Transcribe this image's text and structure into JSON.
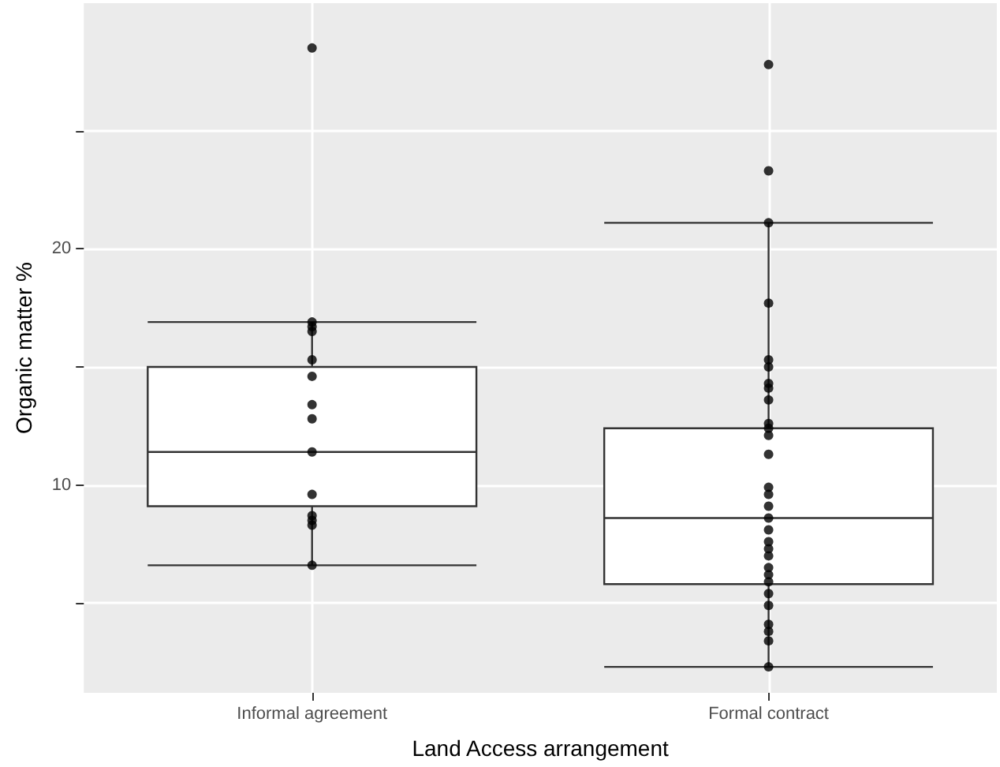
{
  "chart_data": {
    "type": "box",
    "xlabel": "Land Access arrangement",
    "ylabel": "Organic matter %",
    "categories": [
      "Informal agreement",
      "Formal contract"
    ],
    "boxes": [
      {
        "low": 6.6,
        "q1": 9.1,
        "median": 11.4,
        "q3": 15.0,
        "high": 16.9,
        "outliers": [
          28.5
        ]
      },
      {
        "low": 2.3,
        "q1": 5.8,
        "median": 8.6,
        "q3": 12.4,
        "high": 21.1,
        "outliers": [
          27.8,
          23.3
        ]
      }
    ],
    "series": [
      {
        "type": "scatter",
        "color": "#000000",
        "x": [
          "Informal agreement",
          "Informal agreement",
          "Informal agreement",
          "Informal agreement",
          "Informal agreement",
          "Informal agreement",
          "Informal agreement",
          "Informal agreement",
          "Informal agreement",
          "Informal agreement",
          "Informal agreement",
          "Informal agreement",
          "Informal agreement"
        ],
        "values": [
          16.9,
          16.7,
          16.5,
          15.3,
          14.6,
          13.4,
          12.8,
          11.4,
          9.6,
          8.7,
          8.5,
          8.3,
          6.6
        ]
      },
      {
        "type": "scatter",
        "color": "#000000",
        "x": [
          "Formal contract",
          "Formal contract",
          "Formal contract",
          "Formal contract",
          "Formal contract",
          "Formal contract",
          "Formal contract",
          "Formal contract",
          "Formal contract",
          "Formal contract",
          "Formal contract",
          "Formal contract",
          "Formal contract",
          "Formal contract",
          "Formal contract",
          "Formal contract",
          "Formal contract",
          "Formal contract",
          "Formal contract",
          "Formal contract",
          "Formal contract",
          "Formal contract",
          "Formal contract",
          "Formal contract",
          "Formal contract",
          "Formal contract",
          "Formal contract",
          "Formal contract"
        ],
        "values": [
          21.1,
          17.7,
          15.3,
          15.0,
          14.3,
          14.1,
          13.6,
          12.6,
          12.4,
          12.1,
          11.3,
          9.9,
          9.6,
          9.1,
          8.6,
          8.1,
          7.6,
          7.3,
          7.0,
          6.5,
          6.2,
          5.9,
          5.4,
          4.9,
          4.1,
          3.8,
          3.4,
          2.3
        ]
      }
    ],
    "ylim": [
      1.2,
      30.4
    ],
    "yticks": [
      {
        "value": 5,
        "label": null
      },
      10,
      {
        "value": 15,
        "label": null
      },
      20,
      {
        "value": 25,
        "label": null
      }
    ],
    "grid": true,
    "marker": "circle"
  }
}
